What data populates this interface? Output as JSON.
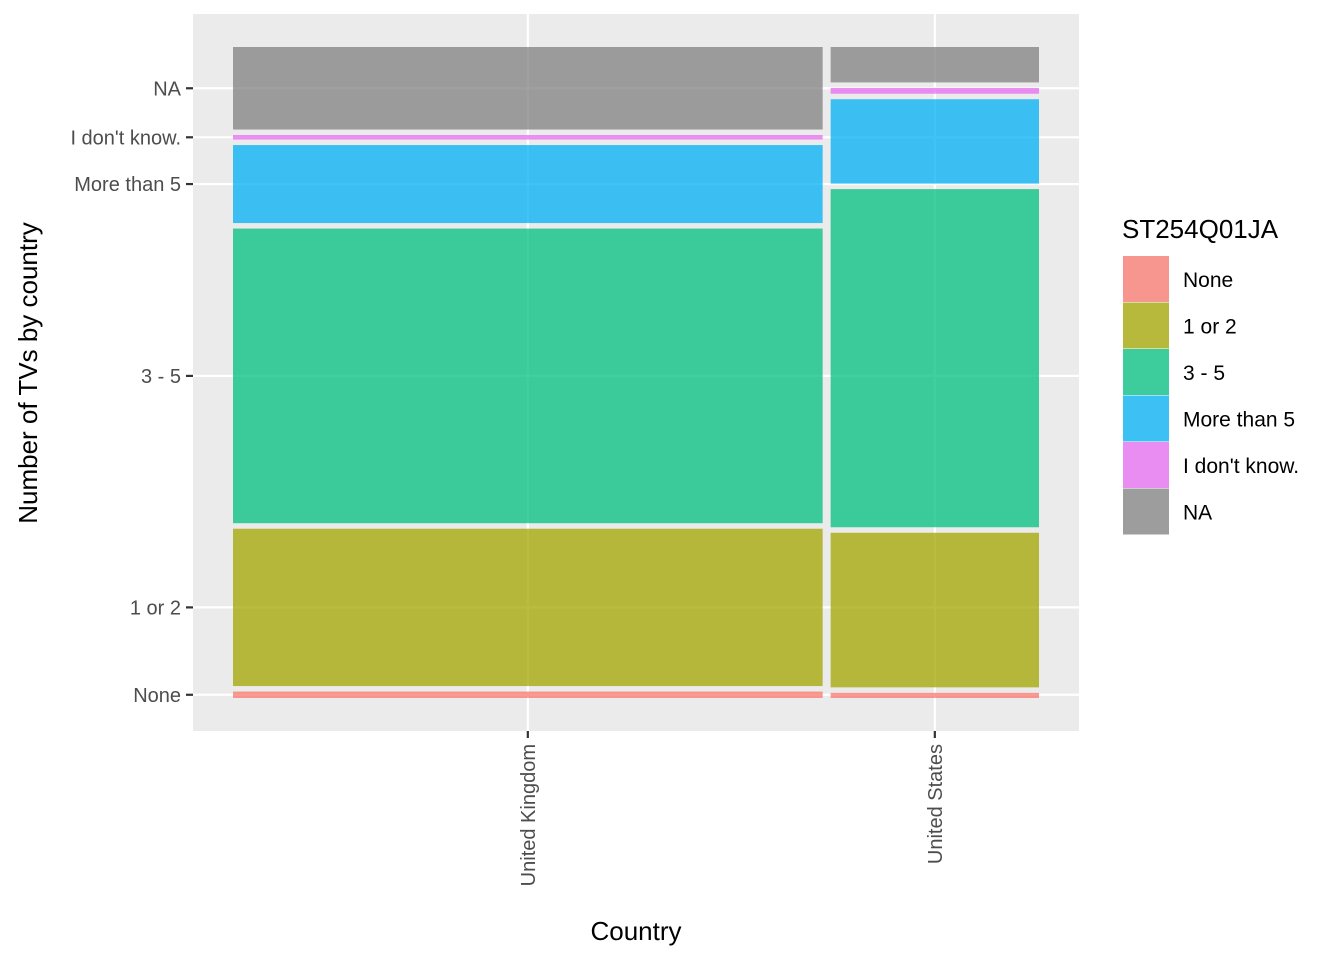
{
  "chart_data": {
    "type": "mosaic",
    "xlabel": "Country",
    "ylabel": "Number of TVs by country",
    "legend_title": "ST254Q01JA",
    "legend_position": "right",
    "grid": true,
    "categories": [
      "United Kingdom",
      "United States"
    ],
    "column_widths": [
      0.733,
      0.259
    ],
    "levels": [
      "None",
      "1 or 2",
      "3 - 5",
      "More than 5",
      "I don't know.",
      "NA"
    ],
    "colors": {
      "None": "#F8766D",
      "1 or 2": "#A3A500",
      "3 - 5": "#00BF7D",
      "More than 5": "#00B0F6",
      "I don't know.": "#E76BF3",
      "NA": "#808080"
    },
    "y_tick_labels": [
      "None",
      "1 or 2",
      "3 - 5",
      "More than 5",
      "I don't know.",
      "NA"
    ],
    "series": [
      {
        "name": "None",
        "values": [
          0.01,
          0.008
        ]
      },
      {
        "name": "1 or 2",
        "values": [
          0.244,
          0.24
        ]
      },
      {
        "name": "3 - 5",
        "values": [
          0.457,
          0.525
        ]
      },
      {
        "name": "More than 5",
        "values": [
          0.121,
          0.131
        ]
      },
      {
        "name": "I don't know.",
        "values": [
          0.007,
          0.009
        ]
      },
      {
        "name": "NA",
        "values": [
          0.128,
          0.055
        ]
      }
    ]
  }
}
